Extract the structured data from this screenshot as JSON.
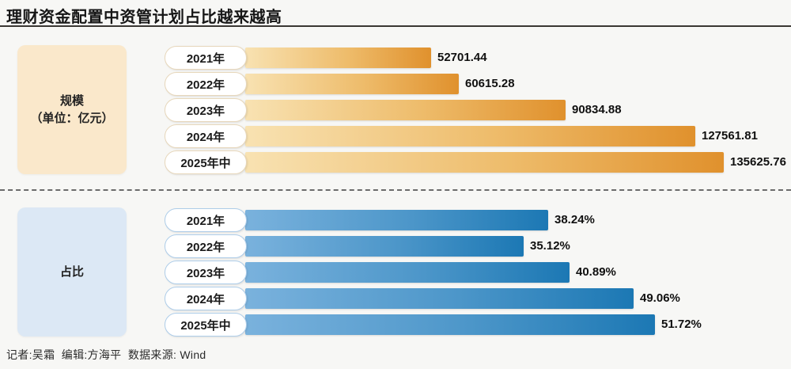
{
  "title": "理财资金配置中资管计划占比越来越高",
  "footer": "记者:吴霜  编辑:方海平  数据来源: Wind",
  "colors": {
    "page_background": "#f7f7f5",
    "gold_gradient_start": "#f8e2b2",
    "gold_gradient_end": "#e0912d",
    "blue_gradient_start": "#7ab2dd",
    "blue_gradient_end": "#1c78b4",
    "scale_box_background": "#fae8cb",
    "ratio_box_background": "#dce8f5"
  },
  "chart_data": [
    {
      "type": "bar",
      "orientation": "horizontal",
      "group_label": "规模",
      "group_sublabel": "（单位：亿元）",
      "categories": [
        "2021年",
        "2022年",
        "2023年",
        "2024年",
        "2025年中"
      ],
      "values": [
        52701.44,
        60615.28,
        90834.88,
        127561.81,
        135625.76
      ],
      "value_labels": [
        "52701.44",
        "60615.28",
        "90834.88",
        "127561.81",
        "135625.76"
      ],
      "xlim": [
        0,
        135625.76
      ],
      "grid": false,
      "legend": false
    },
    {
      "type": "bar",
      "orientation": "horizontal",
      "group_label": "占比",
      "group_sublabel": "",
      "categories": [
        "2021年",
        "2022年",
        "2023年",
        "2024年",
        "2025年中"
      ],
      "values": [
        38.24,
        35.12,
        40.89,
        49.06,
        51.72
      ],
      "value_labels": [
        "38.24%",
        "35.12%",
        "40.89%",
        "49.06%",
        "51.72%"
      ],
      "xlim": [
        0,
        51.72
      ],
      "grid": false,
      "legend": false
    }
  ]
}
